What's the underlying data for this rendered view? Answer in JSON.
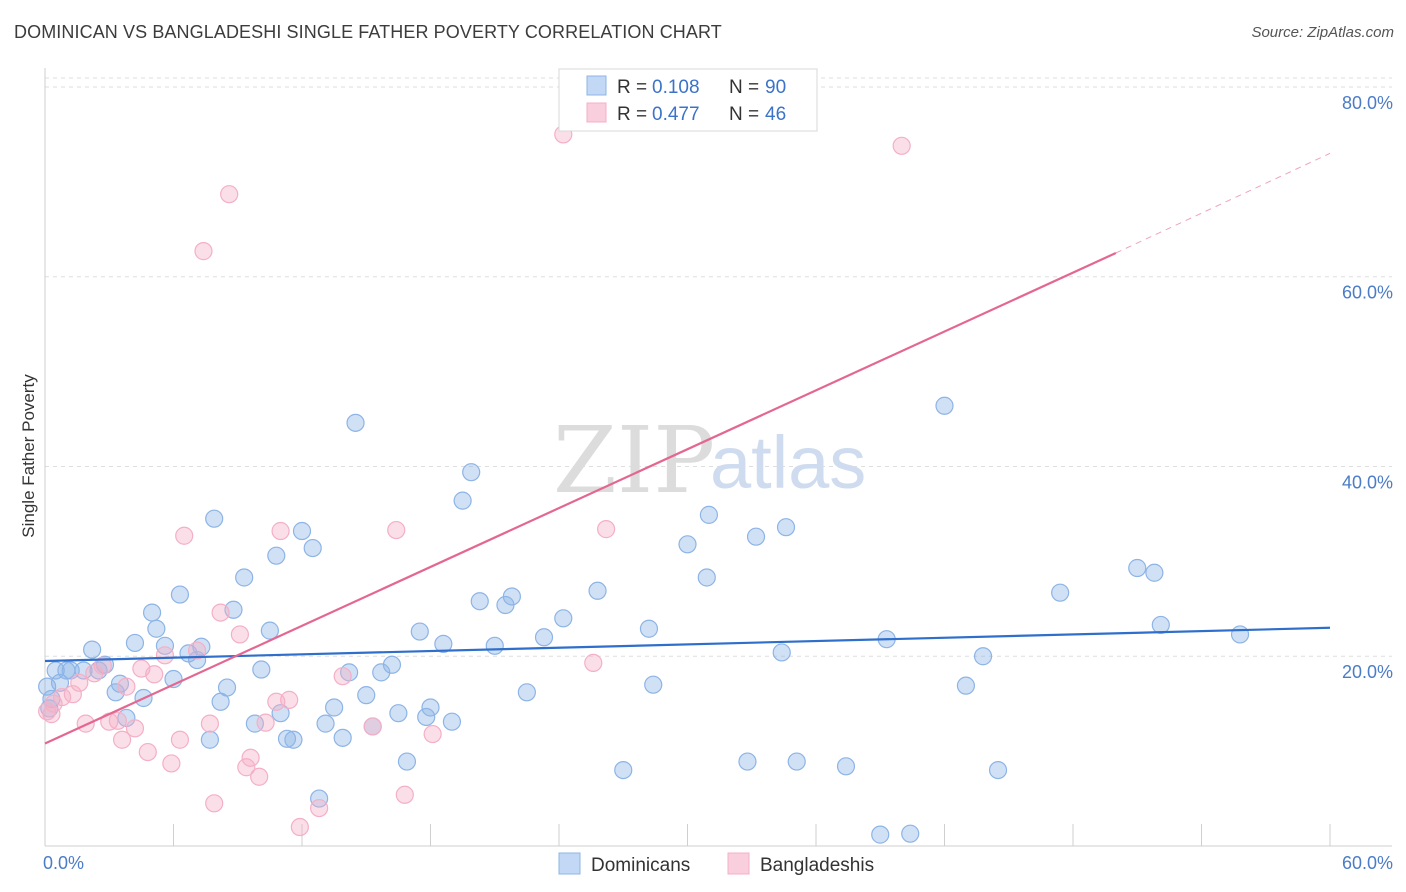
{
  "title": "DOMINICAN VS BANGLADESHI SINGLE FATHER POVERTY CORRELATION CHART",
  "source": "Source: ZipAtlas.com",
  "watermark": {
    "zip": "ZIP",
    "atlas": "atlas"
  },
  "chart_data": {
    "type": "scatter",
    "ylabel": "Single Father Poverty",
    "xlim": [
      0,
      60
    ],
    "ylim": [
      0,
      82
    ],
    "x_ticks": [
      {
        "value": 0,
        "label": "0.0%"
      },
      {
        "value": 60,
        "label": "60.0%"
      }
    ],
    "y_ticks": [
      {
        "value": 20,
        "label": "20.0%"
      },
      {
        "value": 40,
        "label": "40.0%"
      },
      {
        "value": 60,
        "label": "60.0%"
      },
      {
        "value": 80,
        "label": "80.0%"
      }
    ],
    "legend": [
      {
        "r_label": "R =",
        "r": "0.108",
        "n_label": "N =",
        "n": "90"
      },
      {
        "r_label": "R =",
        "r": "0.477",
        "n_label": "N =",
        "n": "46"
      }
    ],
    "series": [
      {
        "name": "Dominicans",
        "color": "#8db4e6",
        "line_color": "#2f6fcb",
        "trend": {
          "x0": 0,
          "y0": 19.5,
          "x1": 60,
          "y1": 23.0
        },
        "points": [
          [
            0.3,
            15.5
          ],
          [
            0.5,
            18.5
          ],
          [
            0.7,
            17.2
          ],
          [
            1.0,
            18.5
          ],
          [
            1.2,
            18.5
          ],
          [
            1.8,
            18.5
          ],
          [
            2.2,
            20.7
          ],
          [
            2.5,
            18.5
          ],
          [
            2.8,
            19.1
          ],
          [
            3.3,
            16.2
          ],
          [
            3.5,
            17.1
          ],
          [
            3.8,
            13.5
          ],
          [
            4.2,
            21.4
          ],
          [
            4.6,
            15.6
          ],
          [
            5.0,
            24.6
          ],
          [
            5.2,
            22.9
          ],
          [
            5.6,
            21.1
          ],
          [
            6.0,
            17.6
          ],
          [
            6.3,
            26.5
          ],
          [
            6.7,
            20.3
          ],
          [
            7.1,
            19.6
          ],
          [
            7.3,
            21.0
          ],
          [
            7.7,
            11.2
          ],
          [
            7.9,
            34.5
          ],
          [
            8.2,
            15.2
          ],
          [
            8.5,
            16.7
          ],
          [
            8.8,
            24.9
          ],
          [
            9.3,
            28.3
          ],
          [
            9.8,
            12.9
          ],
          [
            10.1,
            18.6
          ],
          [
            10.5,
            22.7
          ],
          [
            10.8,
            30.6
          ],
          [
            11.0,
            14.0
          ],
          [
            11.3,
            11.3
          ],
          [
            11.6,
            11.2
          ],
          [
            12.0,
            33.2
          ],
          [
            12.5,
            31.4
          ],
          [
            12.8,
            5.0
          ],
          [
            13.1,
            12.9
          ],
          [
            13.5,
            14.6
          ],
          [
            13.9,
            11.4
          ],
          [
            14.2,
            18.3
          ],
          [
            14.5,
            44.6
          ],
          [
            15.0,
            15.9
          ],
          [
            15.3,
            12.6
          ],
          [
            15.7,
            18.3
          ],
          [
            16.2,
            19.1
          ],
          [
            16.5,
            14.0
          ],
          [
            16.9,
            8.9
          ],
          [
            17.5,
            22.6
          ],
          [
            17.8,
            13.6
          ],
          [
            18.0,
            14.6
          ],
          [
            18.6,
            21.3
          ],
          [
            19.0,
            13.1
          ],
          [
            19.5,
            36.4
          ],
          [
            19.9,
            39.4
          ],
          [
            20.3,
            25.8
          ],
          [
            21.0,
            21.1
          ],
          [
            21.5,
            25.4
          ],
          [
            21.8,
            26.3
          ],
          [
            22.5,
            16.2
          ],
          [
            23.3,
            22.0
          ],
          [
            24.2,
            24.0
          ],
          [
            25.8,
            26.9
          ],
          [
            27.0,
            8.0
          ],
          [
            28.2,
            22.9
          ],
          [
            28.4,
            17.0
          ],
          [
            30.0,
            31.8
          ],
          [
            30.9,
            28.3
          ],
          [
            31.0,
            34.9
          ],
          [
            32.8,
            8.9
          ],
          [
            33.2,
            32.6
          ],
          [
            34.4,
            20.4
          ],
          [
            34.6,
            33.6
          ],
          [
            35.1,
            8.9
          ],
          [
            37.4,
            8.4
          ],
          [
            39.0,
            1.2
          ],
          [
            39.3,
            21.8
          ],
          [
            40.4,
            1.3
          ],
          [
            42.0,
            46.4
          ],
          [
            43.0,
            16.9
          ],
          [
            43.8,
            20.0
          ],
          [
            44.5,
            8.0
          ],
          [
            47.4,
            26.7
          ],
          [
            51.0,
            29.3
          ],
          [
            51.8,
            28.8
          ],
          [
            52.1,
            23.3
          ],
          [
            55.8,
            22.3
          ],
          [
            0.1,
            16.8
          ],
          [
            0.2,
            14.5
          ]
        ]
      },
      {
        "name": "Bangladeshis",
        "color": "#f4afc6",
        "line_color": "#e46792",
        "trend": {
          "x0": 0,
          "y0": 10.8,
          "x1": 50,
          "y1": 62.5
        },
        "trend_ext": {
          "x0": 50,
          "y0": 62.5,
          "x1": 60,
          "y1": 73.0
        },
        "points": [
          [
            0.1,
            14.2
          ],
          [
            0.4,
            15.0
          ],
          [
            0.8,
            15.7
          ],
          [
            1.3,
            16.0
          ],
          [
            1.9,
            12.9
          ],
          [
            2.3,
            18.2
          ],
          [
            2.7,
            19.0
          ],
          [
            3.0,
            13.1
          ],
          [
            3.4,
            13.2
          ],
          [
            3.6,
            11.2
          ],
          [
            3.8,
            16.8
          ],
          [
            4.2,
            12.4
          ],
          [
            4.5,
            18.7
          ],
          [
            4.8,
            9.9
          ],
          [
            5.1,
            18.1
          ],
          [
            5.6,
            20.1
          ],
          [
            5.9,
            8.7
          ],
          [
            6.3,
            11.2
          ],
          [
            6.5,
            32.7
          ],
          [
            7.1,
            20.6
          ],
          [
            7.4,
            62.7
          ],
          [
            7.7,
            12.9
          ],
          [
            7.9,
            4.5
          ],
          [
            8.2,
            24.6
          ],
          [
            8.6,
            68.7
          ],
          [
            9.1,
            22.3
          ],
          [
            9.4,
            8.3
          ],
          [
            9.6,
            9.3
          ],
          [
            10.0,
            7.3
          ],
          [
            10.3,
            13.0
          ],
          [
            10.8,
            15.2
          ],
          [
            11.0,
            33.2
          ],
          [
            11.4,
            15.4
          ],
          [
            11.9,
            2.0
          ],
          [
            12.8,
            4.0
          ],
          [
            13.9,
            17.9
          ],
          [
            15.3,
            12.6
          ],
          [
            16.4,
            33.3
          ],
          [
            16.8,
            5.4
          ],
          [
            18.1,
            11.8
          ],
          [
            24.2,
            75.0
          ],
          [
            25.6,
            19.3
          ],
          [
            26.2,
            33.4
          ],
          [
            40.0,
            73.8
          ],
          [
            0.3,
            13.9
          ],
          [
            1.6,
            17.2
          ]
        ]
      }
    ]
  },
  "bottom_legend": [
    "Dominicans",
    "Bangladeshis"
  ]
}
